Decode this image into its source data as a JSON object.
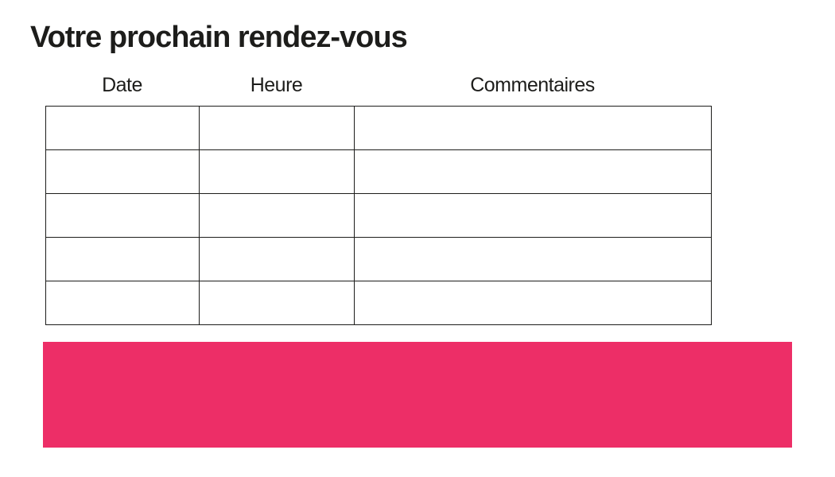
{
  "title": "Votre prochain rendez-vous",
  "table": {
    "headers": [
      "Date",
      "Heure",
      "Commentaires"
    ],
    "rows": [
      [
        "",
        "",
        ""
      ],
      [
        "",
        "",
        ""
      ],
      [
        "",
        "",
        ""
      ],
      [
        "",
        "",
        ""
      ],
      [
        "",
        "",
        ""
      ]
    ]
  },
  "highlight_block": {
    "color": "#ED2E67",
    "text": ""
  },
  "colors": {
    "text": "#1d1d1b",
    "table_border": "#1d1d1b",
    "background": "#ffffff"
  }
}
